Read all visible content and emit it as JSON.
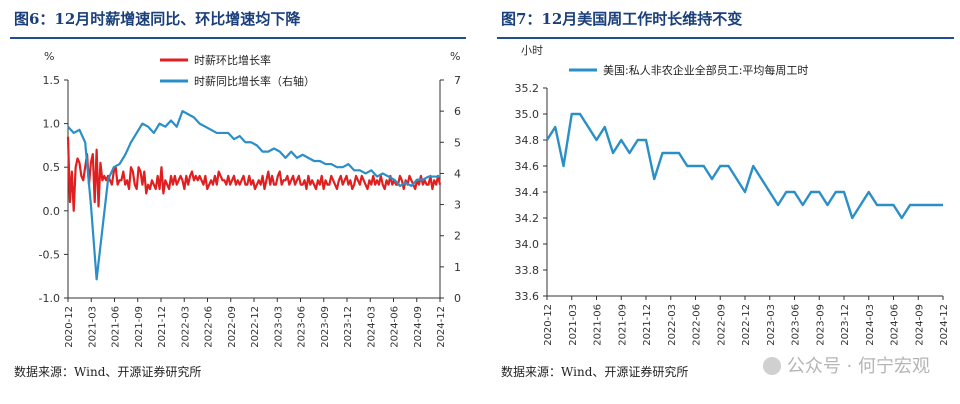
{
  "left": {
    "title": "图6：12月时薪增速同比、环比增速均下降",
    "source": "数据来源：Wind、开源证券研究所",
    "chart_data": {
      "type": "line",
      "x_ticks": [
        "2020-12",
        "2021-03",
        "2021-06",
        "2021-09",
        "2021-12",
        "2022-03",
        "2022-06",
        "2022-09",
        "2022-12",
        "2023-03",
        "2023-06",
        "2023-09",
        "2023-12",
        "2024-03",
        "2024-06",
        "2024-09",
        "2024-12"
      ],
      "ylim_left": [
        -1.0,
        1.5
      ],
      "yticks_left": [
        "1.5",
        "1.0",
        "0.5",
        "0.0",
        "-0.5",
        "-1.0"
      ],
      "yunit_left": "%",
      "ylim_right": [
        0,
        7
      ],
      "yticks_right": [
        "7",
        "6",
        "5",
        "4",
        "3",
        "2",
        "1",
        "0"
      ],
      "yunit_right": "%",
      "legend_position": "top-center",
      "series": [
        {
          "name": "时薪环比增长率",
          "axis": "left",
          "color": "#e02020",
          "values": [
            0.85,
            0.1,
            0.45,
            0.0,
            0.5,
            0.6,
            0.55,
            0.4,
            0.35,
            0.5,
            0.65,
            0.3,
            0.55,
            0.65,
            0.1,
            0.7,
            0.05,
            0.55,
            0.35,
            0.4,
            0.35,
            0.4,
            0.35,
            0.3,
            0.45,
            0.5,
            0.3,
            0.35,
            0.35,
            0.45,
            0.3,
            0.35,
            0.25,
            0.5,
            0.45,
            0.3,
            0.25,
            0.5,
            0.45,
            0.3,
            0.45,
            0.2,
            0.3,
            0.25,
            0.35,
            0.3,
            0.25,
            0.4,
            0.25,
            0.5,
            0.2,
            0.35,
            0.3,
            0.25,
            0.4,
            0.3,
            0.4,
            0.3,
            0.35,
            0.4,
            0.35,
            0.25,
            0.4,
            0.3,
            0.4,
            0.45,
            0.35,
            0.4,
            0.35,
            0.4,
            0.35,
            0.3,
            0.4,
            0.25,
            0.3,
            0.35,
            0.3,
            0.4,
            0.3,
            0.45,
            0.4,
            0.35,
            0.35,
            0.3,
            0.4,
            0.3,
            0.35,
            0.4,
            0.3,
            0.35,
            0.3,
            0.35,
            0.4,
            0.3,
            0.3,
            0.4,
            0.3,
            0.35,
            0.25,
            0.3,
            0.35,
            0.3,
            0.4,
            0.25,
            0.35,
            0.45,
            0.3,
            0.4,
            0.3,
            0.3,
            0.4,
            0.45,
            0.3,
            0.35,
            0.35,
            0.4,
            0.3,
            0.35,
            0.4,
            0.3,
            0.35,
            0.4,
            0.3,
            0.3,
            0.35,
            0.25,
            0.4,
            0.3,
            0.35,
            0.3,
            0.25,
            0.35,
            0.3,
            0.4,
            0.25,
            0.35,
            0.3,
            0.3,
            0.4,
            0.35,
            0.3,
            0.25,
            0.35,
            0.4,
            0.3,
            0.35,
            0.4,
            0.3,
            0.35,
            0.25,
            0.3,
            0.4,
            0.35,
            0.3,
            0.4,
            0.35,
            0.3,
            0.25,
            0.35,
            0.3,
            0.4,
            0.3,
            0.35,
            0.3,
            0.4,
            0.3,
            0.25,
            0.35,
            0.3,
            0.4,
            0.3,
            0.35,
            0.3,
            0.3,
            0.4,
            0.35,
            0.25,
            0.35,
            0.3,
            0.4,
            0.35,
            0.3,
            0.25,
            0.35,
            0.3,
            0.4,
            0.3,
            0.35,
            0.3,
            0.3,
            0.4,
            0.25,
            0.35,
            0.3,
            0.4,
            0.3
          ]
        },
        {
          "name": "时薪同比增长率（右轴）",
          "axis": "right",
          "color": "#2a8fc7",
          "values": []
        }
      ]
    }
  },
  "right": {
    "title": "图7：12月美国周工作时长维持不变",
    "source": "数据来源：Wind、开源证券研究所",
    "chart_data": {
      "type": "line",
      "x_ticks": [
        "2020-12",
        "2021-03",
        "2021-06",
        "2021-09",
        "2021-12",
        "2022-03",
        "2022-06",
        "2022-09",
        "2022-12",
        "2023-03",
        "2023-06",
        "2023-09",
        "2023-12",
        "2024-03",
        "2024-06",
        "2024-09",
        "2024-12"
      ],
      "ylim": [
        33.6,
        35.2
      ],
      "yticks": [
        "35.2",
        "35.0",
        "34.8",
        "34.6",
        "34.4",
        "34.2",
        "34.0",
        "33.8",
        "33.6"
      ],
      "yunit": "小时",
      "legend_position": "top-left",
      "series": [
        {
          "name": "美国:私人非农企业全部员工:平均每周工时",
          "color": "#2a8fc7",
          "values": [
            34.8,
            34.9,
            34.6,
            35.0,
            35.0,
            34.9,
            34.8,
            34.9,
            34.7,
            34.8,
            34.7,
            34.8,
            34.8,
            34.5,
            34.7,
            34.7,
            34.7,
            34.6,
            34.6,
            34.6,
            34.5,
            34.6,
            34.6,
            34.5,
            34.4,
            34.6,
            34.5,
            34.4,
            34.3,
            34.4,
            34.4,
            34.3,
            34.4,
            34.4,
            34.3,
            34.4,
            34.4,
            34.2,
            34.3,
            34.4,
            34.3,
            34.3,
            34.3,
            34.2,
            34.3,
            34.3,
            34.3,
            34.3,
            34.3
          ]
        }
      ]
    }
  },
  "watermark": {
    "text": "公众号 · 何宁宏观"
  }
}
